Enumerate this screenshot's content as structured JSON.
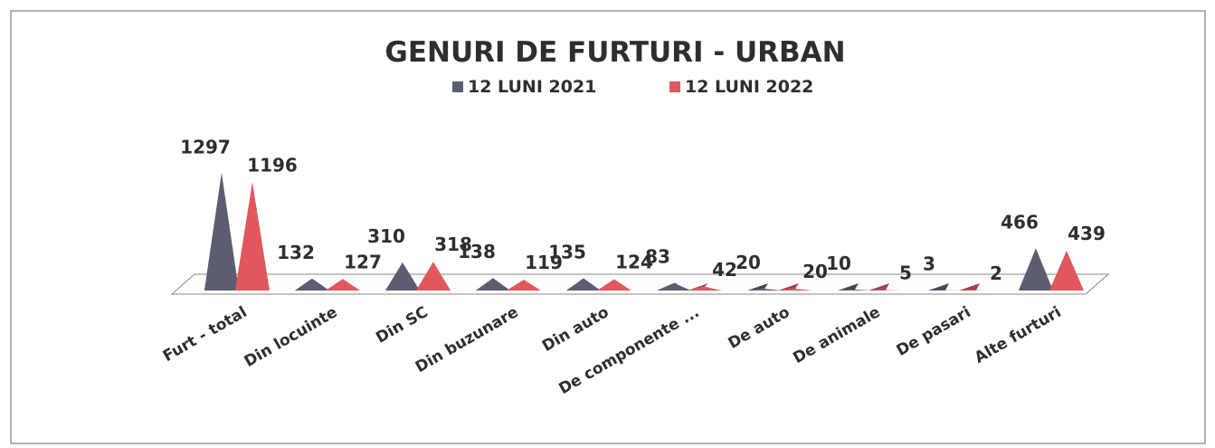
{
  "chart_data": {
    "type": "bar3d",
    "title": "GENURI DE FURTURI  - URBAN",
    "categories": [
      "Furt - total",
      "Din locuinte",
      "Din SC",
      "Din buzunare",
      "Din auto",
      "De componente ...",
      "De auto",
      "De animale",
      "De pasari",
      "Alte furturi"
    ],
    "series": [
      {
        "name": "12 LUNI 2021",
        "color": "#5b5e70",
        "values": [
          1297,
          132,
          310,
          138,
          135,
          83,
          20,
          10,
          3,
          466
        ]
      },
      {
        "name": "12 LUNI 2022",
        "color": "#e0585e",
        "values": [
          1196,
          127,
          318,
          119,
          124,
          42,
          20,
          5,
          2,
          439
        ]
      }
    ],
    "legend": "top"
  }
}
